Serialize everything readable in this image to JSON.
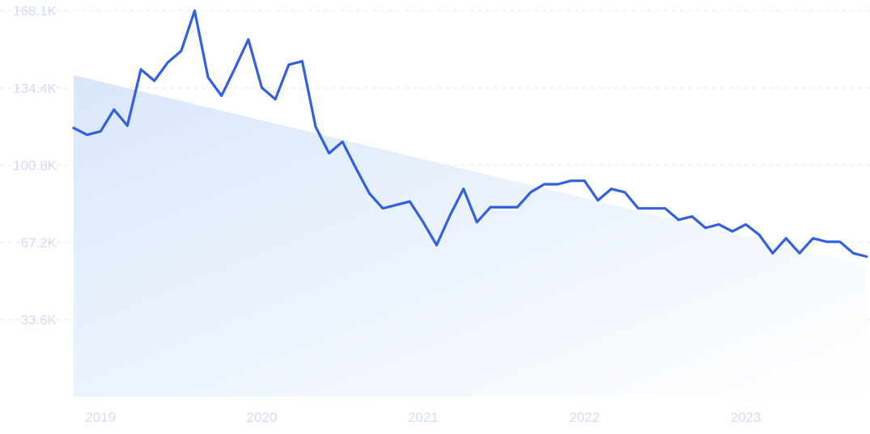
{
  "chart_data": {
    "type": "line",
    "title": "",
    "xlabel": "",
    "ylabel": "",
    "ylim": [
      0,
      168100
    ],
    "grid": true,
    "y_ticks": [
      {
        "value": 168100,
        "label": "168.1K"
      },
      {
        "value": 134400,
        "label": "134.4K"
      },
      {
        "value": 100800,
        "label": "100.8K"
      },
      {
        "value": 67200,
        "label": "67.2K"
      },
      {
        "value": 33600,
        "label": "33.6K"
      }
    ],
    "x_ticks": [
      {
        "value": "2019",
        "label": "2019"
      },
      {
        "value": "2020",
        "label": "2020"
      },
      {
        "value": "2021",
        "label": "2021"
      },
      {
        "value": "2022",
        "label": "2022"
      },
      {
        "value": "2023",
        "label": "2023"
      }
    ],
    "x_start": "2018-11",
    "x_end": "2023-10",
    "series": [
      {
        "color": "#3360e0",
        "points": [
          [
            "2018-11",
            117000
          ],
          [
            "2018-12",
            114000
          ],
          [
            "2019-01",
            115500
          ],
          [
            "2019-02",
            125000
          ],
          [
            "2019-03",
            118000
          ],
          [
            "2019-04",
            142500
          ],
          [
            "2019-05",
            137500
          ],
          [
            "2019-06",
            145500
          ],
          [
            "2019-07",
            150500
          ],
          [
            "2019-08",
            168000
          ],
          [
            "2019-09",
            139000
          ],
          [
            "2019-10",
            131000
          ],
          [
            "2019-11",
            143000
          ],
          [
            "2019-12",
            155500
          ],
          [
            "2020-01",
            134500
          ],
          [
            "2020-02",
            129500
          ],
          [
            "2020-03",
            144500
          ],
          [
            "2020-04",
            146000
          ],
          [
            "2020-05",
            117500
          ],
          [
            "2020-06",
            106000
          ],
          [
            "2020-07",
            111000
          ],
          [
            "2020-08",
            99500
          ],
          [
            "2020-09",
            88500
          ],
          [
            "2020-10",
            82000
          ],
          [
            "2020-11",
            83500
          ],
          [
            "2020-12",
            85000
          ],
          [
            "2021-01",
            76000
          ],
          [
            "2021-02",
            66000
          ],
          [
            "2021-03",
            79000
          ],
          [
            "2021-04",
            90500
          ],
          [
            "2021-05",
            76000
          ],
          [
            "2021-06",
            82500
          ],
          [
            "2021-07",
            82500
          ],
          [
            "2021-08",
            82500
          ],
          [
            "2021-09",
            89000
          ],
          [
            "2021-10",
            92500
          ],
          [
            "2021-11",
            92500
          ],
          [
            "2021-12",
            94000
          ],
          [
            "2022-01",
            94000
          ],
          [
            "2022-02",
            85500
          ],
          [
            "2022-03",
            90500
          ],
          [
            "2022-04",
            89000
          ],
          [
            "2022-05",
            82000
          ],
          [
            "2022-06",
            82000
          ],
          [
            "2022-07",
            82000
          ],
          [
            "2022-08",
            77000
          ],
          [
            "2022-09",
            78500
          ],
          [
            "2022-10",
            73500
          ],
          [
            "2022-11",
            75000
          ],
          [
            "2022-12",
            72000
          ],
          [
            "2023-01",
            75000
          ],
          [
            "2023-02",
            70500
          ],
          [
            "2023-03",
            62500
          ],
          [
            "2023-04",
            69000
          ],
          [
            "2023-05",
            62500
          ],
          [
            "2023-06",
            69000
          ],
          [
            "2023-07",
            67500
          ],
          [
            "2023-08",
            67500
          ],
          [
            "2023-09",
            62500
          ],
          [
            "2023-10",
            61000
          ]
        ]
      }
    ],
    "trend": {
      "start": [
        "2018-11",
        140000
      ],
      "end": [
        "2023-10",
        57000
      ],
      "fill_color": "#d8e6fa"
    }
  }
}
